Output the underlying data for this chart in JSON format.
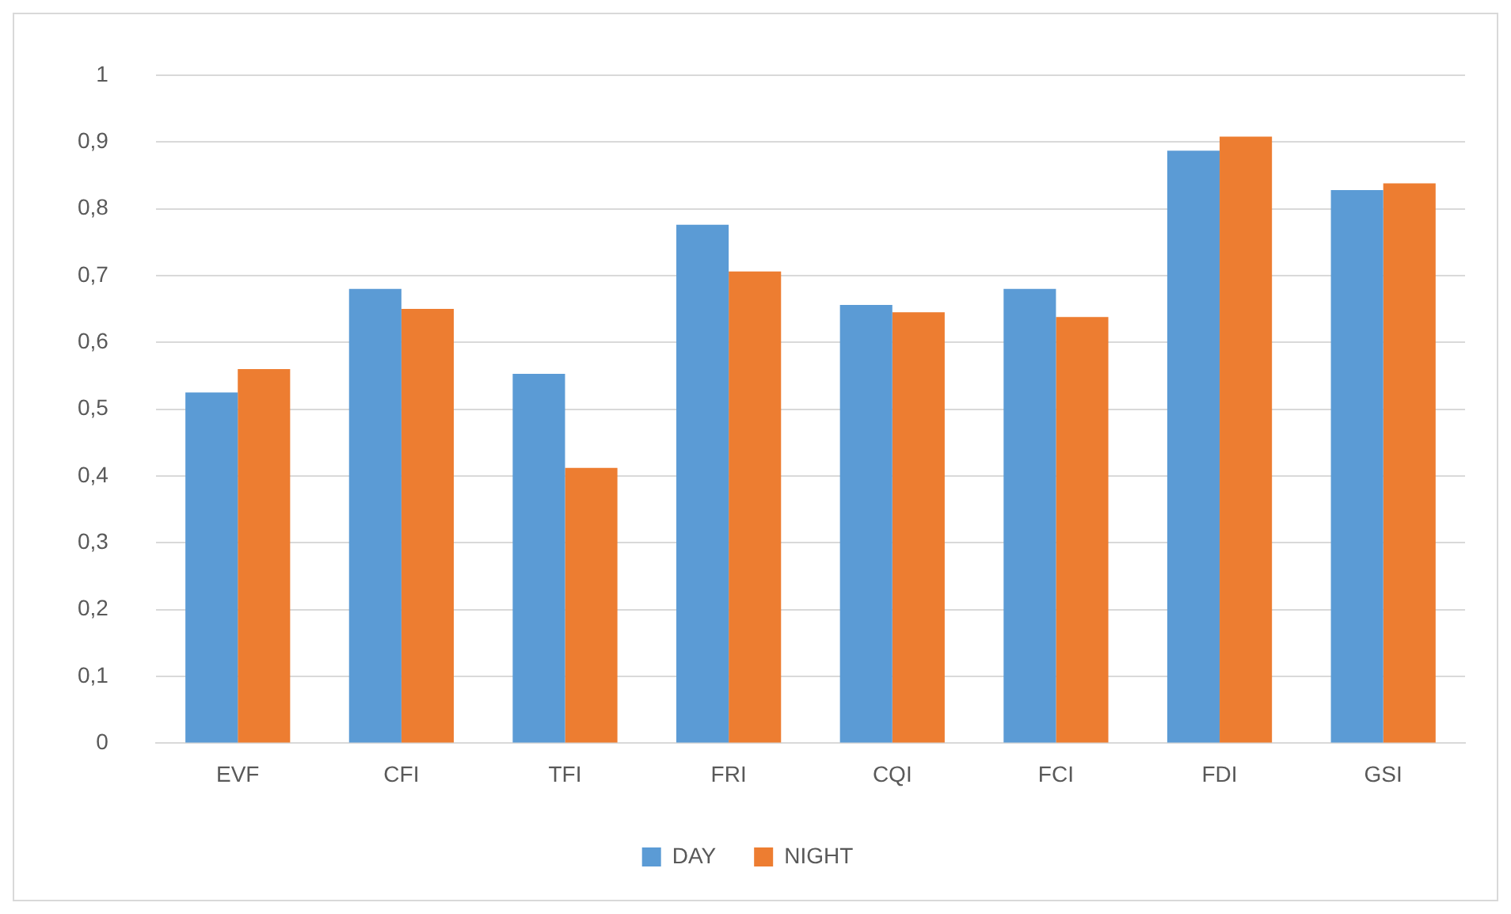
{
  "chart_data": {
    "type": "bar",
    "categories": [
      "EVF",
      "CFI",
      "TFI",
      "FRI",
      "CQI",
      "FCI",
      "FDI",
      "GSI"
    ],
    "series": [
      {
        "name": "DAY",
        "color": "#5b9bd5",
        "values": [
          0.525,
          0.68,
          0.553,
          0.776,
          0.656,
          0.68,
          0.887,
          0.828
        ]
      },
      {
        "name": "NIGHT",
        "color": "#ed7d31",
        "values": [
          0.56,
          0.65,
          0.412,
          0.706,
          0.645,
          0.638,
          0.908,
          0.838
        ]
      }
    ],
    "ylim": [
      0,
      1
    ],
    "yticks": [
      0,
      {
        "value": 0.1,
        "label": "0,1"
      },
      {
        "value": 0.2,
        "label": "0,2"
      },
      {
        "value": 0.3,
        "label": "0,3"
      },
      {
        "value": 0.4,
        "label": "0,4"
      },
      {
        "value": 0.5,
        "label": "0,5"
      },
      {
        "value": 0.6,
        "label": "0,6"
      },
      {
        "value": 0.7,
        "label": "0,7"
      },
      {
        "value": 0.8,
        "label": "0,8"
      },
      {
        "value": 0.9,
        "label": "0,9"
      },
      1
    ],
    "grid": "y",
    "legend": "bottom"
  }
}
